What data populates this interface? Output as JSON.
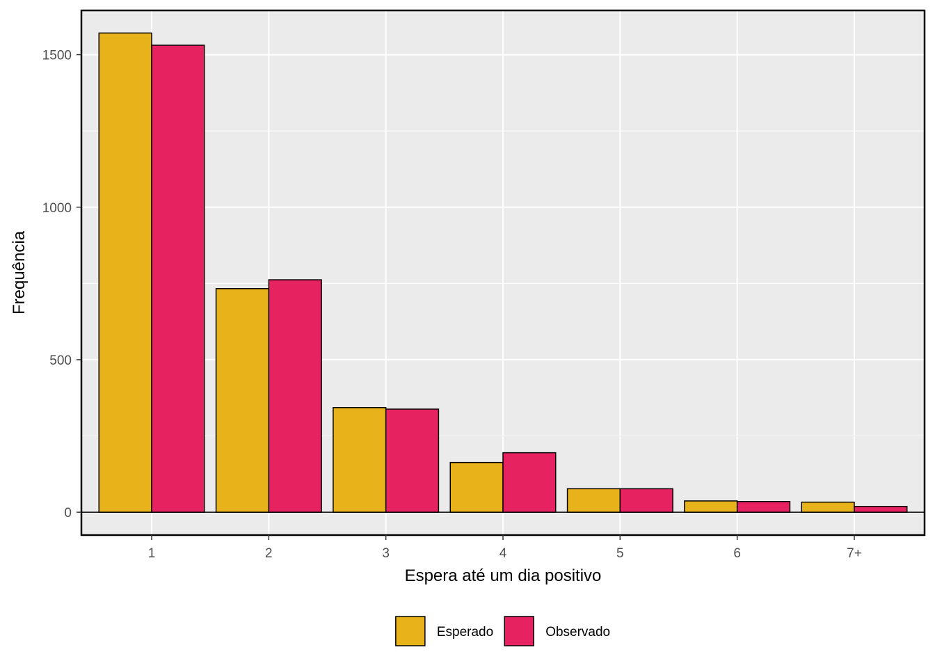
{
  "chart_data": {
    "type": "bar",
    "xlabel": "Espera até um dia positivo",
    "ylabel": "Frequência",
    "categories": [
      "1",
      "2",
      "3",
      "4",
      "5",
      "6",
      "7+"
    ],
    "series": [
      {
        "name": "Esperado",
        "values": [
          1571,
          733,
          343,
          163,
          77,
          37,
          33
        ],
        "color": "#E8B31A"
      },
      {
        "name": "Observado",
        "values": [
          1531,
          762,
          338,
          195,
          77,
          35,
          19
        ],
        "color": "#E62260"
      }
    ],
    "ylim": [
      -75,
      1645
    ],
    "yticks": [
      0,
      500,
      1000,
      1500
    ],
    "grid": true,
    "legend_position": "bottom",
    "panel_color": "#EBEBEB"
  }
}
